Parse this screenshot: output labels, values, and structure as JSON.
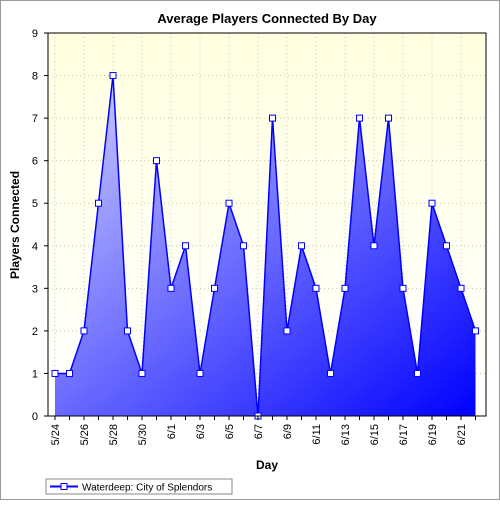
{
  "chart_data": {
    "type": "area",
    "title": "Average Players Connected By Day",
    "xlabel": "Day",
    "ylabel": "Players Connected",
    "ylim": [
      0,
      9
    ],
    "yticks": [
      0,
      1,
      2,
      3,
      4,
      5,
      6,
      7,
      8,
      9
    ],
    "x": [
      "5/24",
      "5/25",
      "5/26",
      "5/27",
      "5/28",
      "5/29",
      "5/30",
      "5/31",
      "6/1",
      "6/2",
      "6/3",
      "6/4",
      "6/5",
      "6/6",
      "6/7",
      "6/8",
      "6/9",
      "6/10",
      "6/11",
      "6/12",
      "6/13",
      "6/14",
      "6/15",
      "6/16",
      "6/17",
      "6/18",
      "6/19",
      "6/20",
      "6/21",
      "6/22"
    ],
    "xtick_labels": [
      "5/24",
      "5/26",
      "5/28",
      "5/30",
      "6/1",
      "6/3",
      "6/5",
      "6/7",
      "6/9",
      "6/11",
      "6/13",
      "6/15",
      "6/17",
      "6/19",
      "6/21"
    ],
    "series": [
      {
        "name": "Waterdeep: City of Splendors",
        "values": [
          1,
          1,
          2,
          5,
          8,
          2,
          1,
          6,
          3,
          4,
          1,
          3,
          5,
          4,
          0,
          7,
          2,
          4,
          3,
          1,
          3,
          7,
          4,
          7,
          3,
          1,
          5,
          4,
          3,
          2
        ]
      }
    ],
    "grid": true,
    "legend_position": "bottom-left",
    "colors": {
      "plot_bg_top": "#ffffe0",
      "plot_bg_bottom": "#ffffff",
      "line": "#0000ff",
      "fill_light": "#d2d2ff",
      "fill_dark": "#0000ff",
      "marker_fill": "#ffffff",
      "grid": "#c8c8b4"
    }
  }
}
